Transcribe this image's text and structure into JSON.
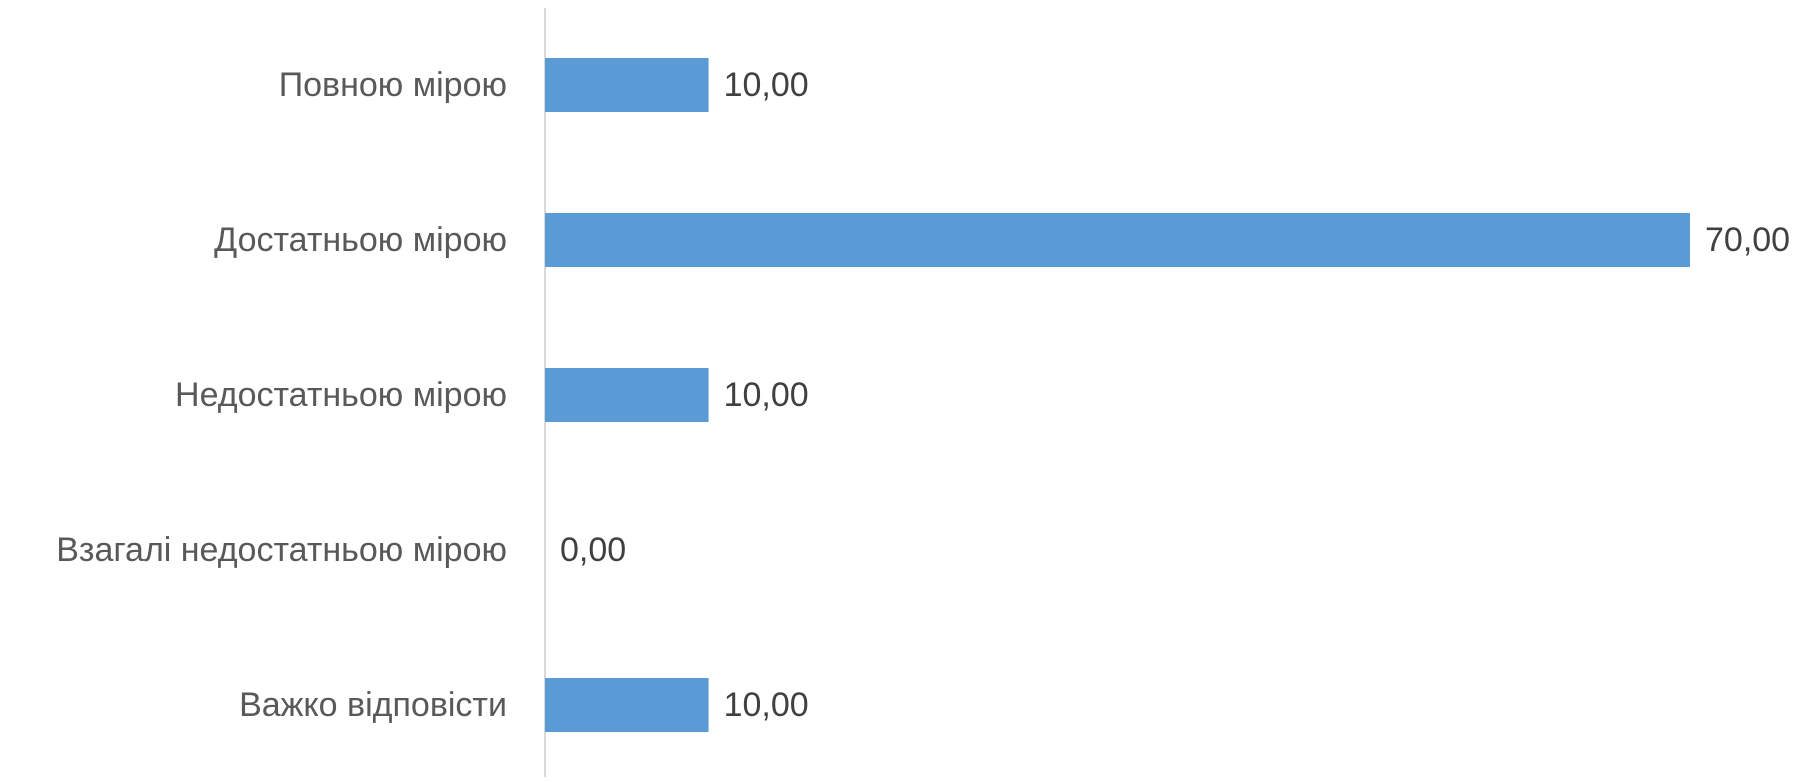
{
  "chart_data": {
    "type": "bar",
    "orientation": "horizontal",
    "title": "",
    "xlabel": "",
    "ylabel": "",
    "categories": [
      "Повною мірою",
      "Достатньою мірою",
      "Недостатньою мірою",
      "Взагалі недостатньою мірою",
      "Важко відповісти"
    ],
    "values": [
      10,
      70,
      10,
      0,
      10
    ],
    "value_labels": [
      "10,00",
      "70,00",
      "10,00",
      "0,00",
      "10,00"
    ],
    "xlim": [
      0,
      70
    ],
    "grid": false,
    "legend": "none",
    "colors": {
      "bar": "#5B9BD5",
      "axis": "#D9D9D9",
      "category_text": "#595959",
      "value_text": "#404040"
    }
  }
}
